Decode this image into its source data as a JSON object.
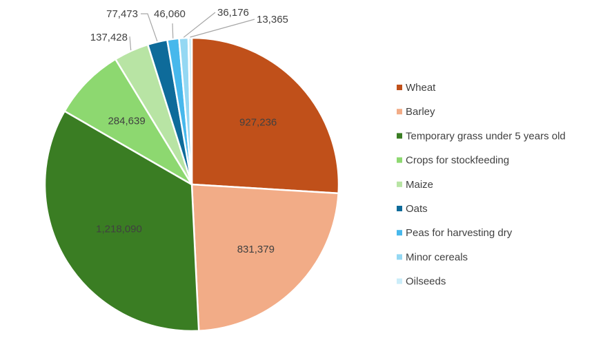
{
  "chart_data": {
    "type": "pie",
    "title": "",
    "categories": [
      "Wheat",
      "Barley",
      "Temporary grass under 5 years old",
      "Crops for stockfeeding",
      "Maize",
      "Oats",
      "Peas for harvesting dry",
      "Minor cereals",
      "Oilseeds"
    ],
    "values": [
      927236,
      831379,
      1218090,
      284639,
      137428,
      77473,
      46060,
      36176,
      13365
    ],
    "value_labels": [
      "927,236",
      "831,379",
      "1,218,090",
      "284,639",
      "137,428",
      "77,473",
      "46,060",
      "36,176",
      "13,365"
    ],
    "colors": [
      "#C0501A",
      "#F2AC87",
      "#3A7D23",
      "#8DD870",
      "#B8E4A4",
      "#0E6B9A",
      "#47B8EC",
      "#94D8F3",
      "#CBEDF9"
    ],
    "legend_position": "right"
  }
}
